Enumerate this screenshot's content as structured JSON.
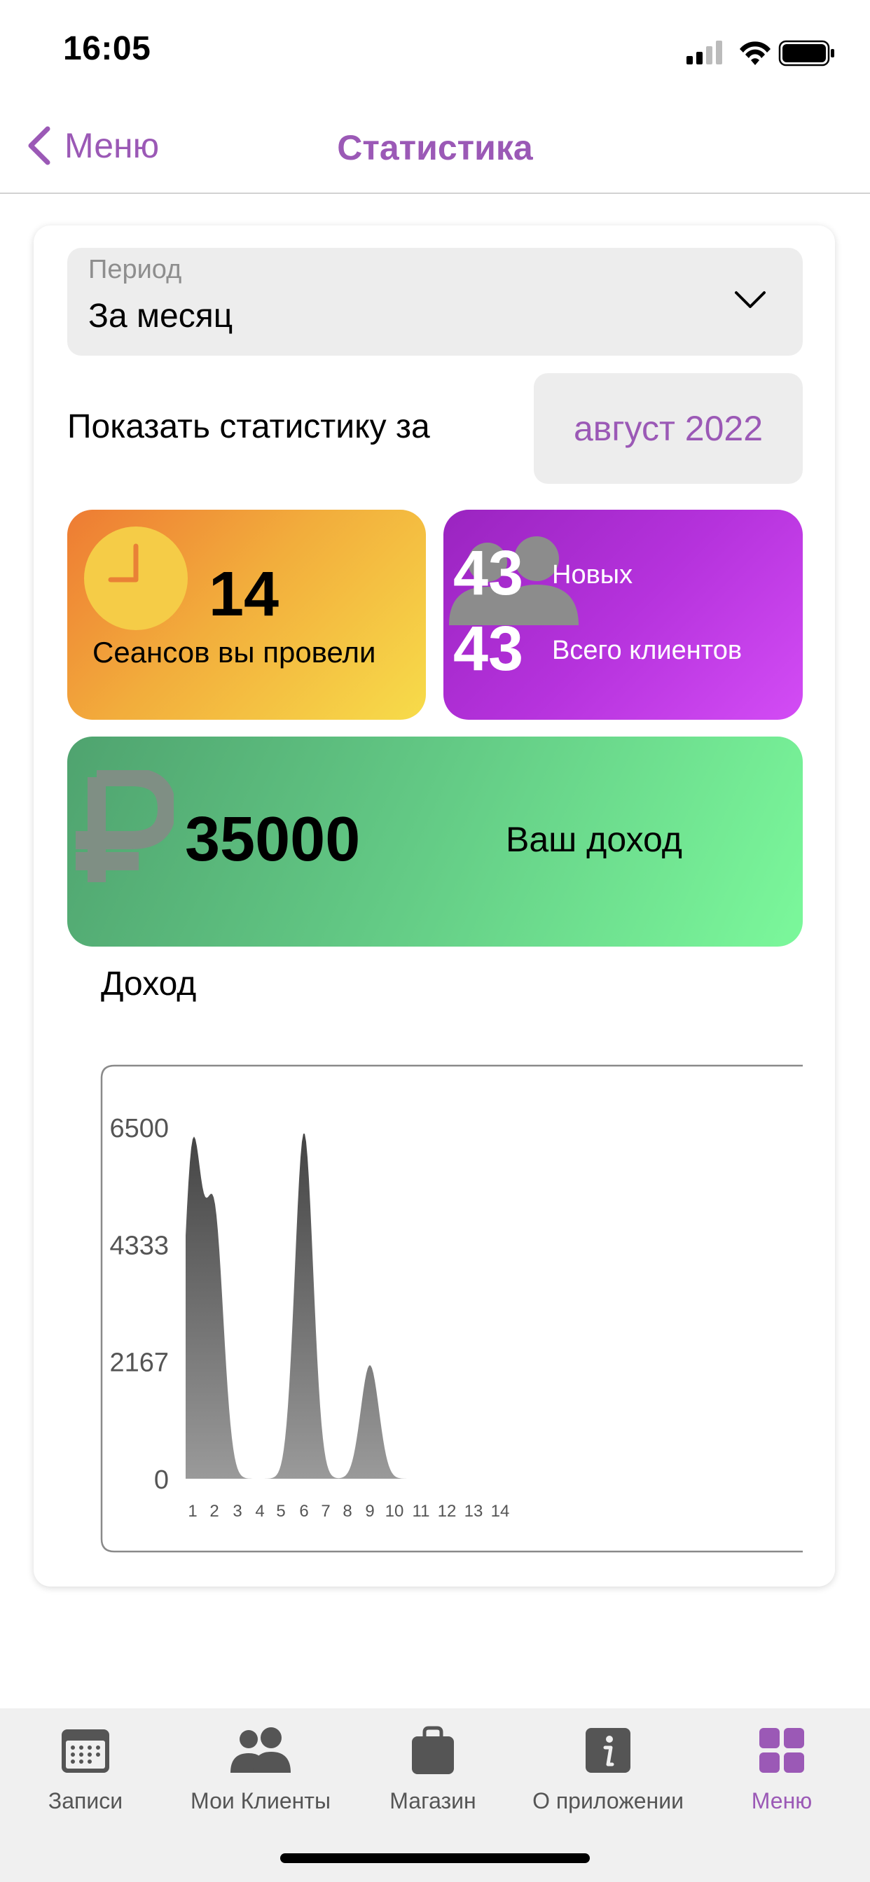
{
  "status_bar": {
    "time": "16:05"
  },
  "nav": {
    "back_label": "Меню",
    "title": "Статистика"
  },
  "period": {
    "label": "Период",
    "value": "За месяц"
  },
  "show_stats": {
    "label": "Показать статистику за",
    "month": "август 2022"
  },
  "sessions": {
    "count": "14",
    "label": "Сеансов вы провели"
  },
  "clients": {
    "new_count": "43",
    "new_label": "Новых",
    "total_count": "43",
    "total_label": "Всего клиентов"
  },
  "income": {
    "value": "35000",
    "label": "Ваш доход"
  },
  "chart_title": "Доход",
  "chart_data": {
    "type": "area",
    "title": "Доход",
    "xlabel": "",
    "ylabel": "",
    "x": [
      1,
      2,
      3,
      4,
      5,
      6,
      7,
      8,
      9,
      10,
      11,
      12,
      13,
      14
    ],
    "series": [
      {
        "values": [
          6000,
          4800,
          0,
          0,
          0,
          6400,
          0,
          0,
          2100,
          0,
          0,
          0,
          0,
          0
        ]
      }
    ],
    "yticks": [
      0,
      2167,
      4333,
      6500
    ],
    "ylim": [
      0,
      6500
    ],
    "grid": false,
    "color": "#555555"
  },
  "tabs": [
    {
      "label": "Записи",
      "icon": "calendar-icon"
    },
    {
      "label": "Мои Клиенты",
      "icon": "people-icon"
    },
    {
      "label": "Магазин",
      "icon": "bag-icon"
    },
    {
      "label": "О приложении",
      "icon": "info-icon"
    },
    {
      "label": "Меню",
      "icon": "grid-icon",
      "active": true
    }
  ],
  "colors": {
    "accent": "#9b59b6"
  }
}
